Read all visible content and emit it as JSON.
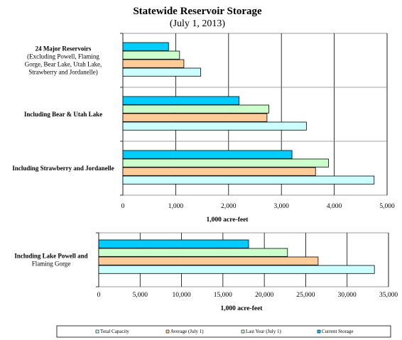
{
  "title": "Statewide Reservoir Storage",
  "subtitle": "(July 1, 2013)",
  "chart_data": [
    {
      "type": "bar",
      "orientation": "horizontal",
      "categories": [
        {
          "lines": [
            "24 Major Reservoirs",
            "(Excluding Powell, Flaming",
            "Gorge, Bear Lake, Utah Lake,",
            "Strawberry and Jordanelle)"
          ]
        },
        {
          "lines": [
            "Including Bear & Utah Lake"
          ]
        },
        {
          "lines": [
            "Including Strawberry and Jordanelle"
          ]
        }
      ],
      "series": [
        {
          "name": "Current Storage",
          "values": [
            950,
            2420,
            3520
          ]
        },
        {
          "name": "Last Year (July 1)",
          "values": [
            1180,
            3040,
            4280
          ]
        },
        {
          "name": "Average (July 1)",
          "values": [
            1270,
            3000,
            4010
          ]
        },
        {
          "name": "Total Capacity",
          "values": [
            1620,
            3820,
            5230
          ]
        }
      ],
      "xlim": [
        0,
        5500
      ],
      "xticks": [
        "0",
        "1,000",
        "2,000",
        "3,000",
        "4,000",
        "5,000"
      ],
      "xlabel": "1,000 acre-feet",
      "grid": true
    },
    {
      "type": "bar",
      "orientation": "horizontal",
      "categories": [
        {
          "lines": [
            "Including Lake Powell and",
            "Flaming Gorge"
          ]
        }
      ],
      "series": [
        {
          "name": "Current Storage",
          "values": [
            18100
          ]
        },
        {
          "name": "Last Year (July 1)",
          "values": [
            22800
          ]
        },
        {
          "name": "Average (July 1)",
          "values": [
            26500
          ]
        },
        {
          "name": "Total Capacity",
          "values": [
            33300
          ]
        }
      ],
      "xlim": [
        0,
        35000
      ],
      "xticks": [
        "0",
        "5,000",
        "10,000",
        "15,000",
        "20,000",
        "25,000",
        "30,000",
        "35,000"
      ],
      "xlabel": "1,000 acre-feet",
      "grid": true
    }
  ],
  "legend": {
    "placement": "bottom",
    "items": [
      {
        "label": "Total Capacity",
        "color": "#ccffff"
      },
      {
        "label": "Average (July 1)",
        "color": "#ffcc99"
      },
      {
        "label": "Last Year (July 1)",
        "color": "#ccffcc"
      },
      {
        "label": "Current Storage",
        "color": "#00ccff"
      }
    ]
  },
  "colors": {
    "Current Storage": "#00ccff",
    "Last Year (July 1)": "#ccffcc",
    "Average (July 1)": "#ffcc99",
    "Total Capacity": "#ccffff"
  }
}
